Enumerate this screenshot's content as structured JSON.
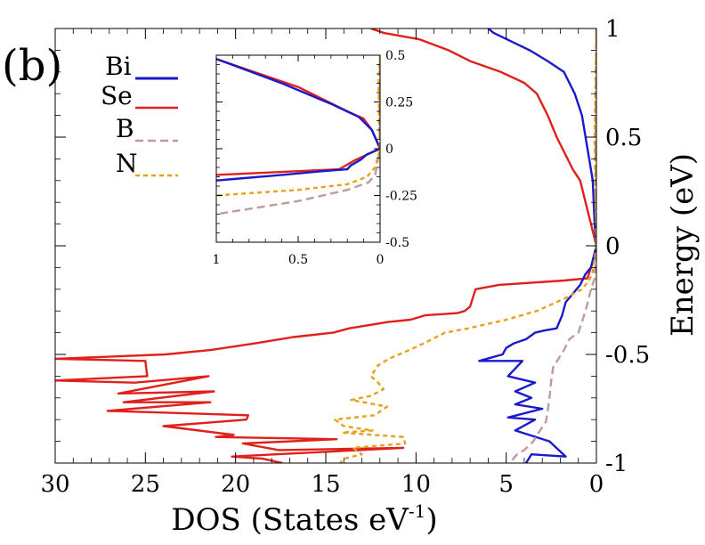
{
  "panel_label": "(b)",
  "chart_data": [
    {
      "type": "line",
      "name": "main",
      "xlabel": "DOS (States eV",
      "xlabel_sup": "-1",
      "xlabel_close": ")",
      "ylabel": "Energy (eV)",
      "xlim": [
        30,
        0
      ],
      "ylim": [
        -1,
        1
      ],
      "xticks": [
        30,
        25,
        20,
        15,
        10,
        5,
        0
      ],
      "xtick_labels": [
        "30",
        "25",
        "20",
        "15",
        "10",
        "5",
        "0"
      ],
      "yticks": [
        -1,
        -0.5,
        0,
        0.5,
        1
      ],
      "ytick_labels": [
        "-1",
        "-0.5",
        "0",
        "0.5",
        "1"
      ],
      "series": [
        {
          "name": "Se",
          "color": "#e0201b",
          "dash": "",
          "points": [
            [
              12.5,
              1.0
            ],
            [
              11.8,
              0.98
            ],
            [
              9.8,
              0.95
            ],
            [
              8.2,
              0.9
            ],
            [
              7,
              0.85
            ],
            [
              5.3,
              0.8
            ],
            [
              4,
              0.75
            ],
            [
              3.3,
              0.7
            ],
            [
              2.7,
              0.6
            ],
            [
              2.2,
              0.5
            ],
            [
              1.6,
              0.4
            ],
            [
              1.3,
              0.35
            ],
            [
              0.9,
              0.3
            ],
            [
              0.6,
              0.2
            ],
            [
              0.3,
              0.1
            ],
            [
              0,
              0
            ],
            [
              0.3,
              -0.1
            ],
            [
              0.5,
              -0.15
            ],
            [
              1.8,
              -0.16
            ],
            [
              5.4,
              -0.18
            ],
            [
              6.7,
              -0.2
            ],
            [
              7,
              -0.28
            ],
            [
              7.3,
              -0.3
            ],
            [
              7.7,
              -0.31
            ],
            [
              9.5,
              -0.32
            ],
            [
              10.3,
              -0.34
            ],
            [
              11.5,
              -0.35
            ],
            [
              13.7,
              -0.38
            ],
            [
              14.6,
              -0.4
            ],
            [
              16.8,
              -0.42
            ],
            [
              19,
              -0.45
            ],
            [
              21.4,
              -0.48
            ],
            [
              23.9,
              -0.5
            ],
            [
              30,
              -0.52
            ],
            [
              25,
              -0.53
            ],
            [
              24.9,
              -0.6
            ],
            [
              30,
              -0.62
            ],
            [
              25.6,
              -0.63
            ],
            [
              21.5,
              -0.6
            ],
            [
              26.5,
              -0.68
            ],
            [
              21.2,
              -0.67
            ],
            [
              26.2,
              -0.72
            ],
            [
              21.4,
              -0.72
            ],
            [
              27.1,
              -0.76
            ],
            [
              19.3,
              -0.78
            ],
            [
              19.4,
              -0.8
            ],
            [
              24,
              -0.83
            ],
            [
              20.1,
              -0.87
            ],
            [
              21.1,
              -0.88
            ],
            [
              14.4,
              -0.89
            ],
            [
              19.6,
              -0.91
            ],
            [
              17.6,
              -0.94
            ],
            [
              10.7,
              -0.93
            ],
            [
              20.2,
              -0.97
            ],
            [
              18.5,
              -0.98
            ],
            [
              17.4,
              -1.0
            ]
          ]
        },
        {
          "name": "Bi",
          "color": "#1a1acc",
          "dash": "",
          "points": [
            [
              6,
              1.0
            ],
            [
              5.7,
              0.98
            ],
            [
              3.7,
              0.9
            ],
            [
              2.7,
              0.85
            ],
            [
              1.8,
              0.8
            ],
            [
              1.2,
              0.7
            ],
            [
              0.8,
              0.6
            ],
            [
              0.6,
              0.5
            ],
            [
              0.4,
              0.4
            ],
            [
              0.3,
              0.35
            ],
            [
              0.2,
              0.3
            ],
            [
              0.1,
              0.1
            ],
            [
              0,
              0
            ],
            [
              0.3,
              -0.1
            ],
            [
              0.6,
              -0.13
            ],
            [
              0.9,
              -0.18
            ],
            [
              1.1,
              -0.2
            ],
            [
              1.4,
              -0.23
            ],
            [
              1.7,
              -0.26
            ],
            [
              1.9,
              -0.32
            ],
            [
              2.1,
              -0.36
            ],
            [
              2.2,
              -0.38
            ],
            [
              2.9,
              -0.39
            ],
            [
              3.4,
              -0.4
            ],
            [
              3.9,
              -0.43
            ],
            [
              4.6,
              -0.45
            ],
            [
              5.0,
              -0.47
            ],
            [
              5.2,
              -0.5
            ],
            [
              6.5,
              -0.53
            ],
            [
              4.1,
              -0.53
            ],
            [
              4.9,
              -0.6
            ],
            [
              3.4,
              -0.63
            ],
            [
              4.5,
              -0.67
            ],
            [
              3.6,
              -0.7
            ],
            [
              4.5,
              -0.73
            ],
            [
              3.0,
              -0.75
            ],
            [
              4.9,
              -0.79
            ],
            [
              3.4,
              -0.8
            ],
            [
              4.5,
              -0.85
            ],
            [
              2.6,
              -0.9
            ],
            [
              1.7,
              -0.97
            ],
            [
              3.6,
              -0.96
            ],
            [
              3.9,
              -1.0
            ]
          ]
        },
        {
          "name": "B",
          "color": "#bc9c9c",
          "dash": "9,5",
          "points": [
            [
              0,
              1.0
            ],
            [
              0.05,
              0.5
            ],
            [
              0.03,
              0.2
            ],
            [
              0,
              0
            ],
            [
              0.1,
              -0.15
            ],
            [
              0.3,
              -0.2
            ],
            [
              0.6,
              -0.3
            ],
            [
              0.8,
              -0.35
            ],
            [
              1.0,
              -0.4
            ],
            [
              1.5,
              -0.43
            ],
            [
              1.8,
              -0.48
            ],
            [
              2.1,
              -0.52
            ],
            [
              2.4,
              -0.56
            ],
            [
              2.5,
              -0.62
            ],
            [
              2.6,
              -0.7
            ],
            [
              2.7,
              -0.76
            ],
            [
              2.8,
              -0.81
            ],
            [
              3.2,
              -0.86
            ],
            [
              3.5,
              -0.9
            ],
            [
              4.0,
              -0.94
            ],
            [
              4.4,
              -0.96
            ],
            [
              4.8,
              -1.0
            ]
          ]
        },
        {
          "name": "N",
          "color": "#e6a219",
          "dash": "5,4",
          "points": [
            [
              0,
              1.0
            ],
            [
              0.1,
              0.5
            ],
            [
              0.05,
              0.2
            ],
            [
              0,
              0
            ],
            [
              0.2,
              -0.12
            ],
            [
              0.4,
              -0.16
            ],
            [
              0.8,
              -0.2
            ],
            [
              1.7,
              -0.24
            ],
            [
              3.3,
              -0.3
            ],
            [
              5,
              -0.34
            ],
            [
              7.1,
              -0.38
            ],
            [
              8.4,
              -0.4
            ],
            [
              9.1,
              -0.43
            ],
            [
              10.1,
              -0.47
            ],
            [
              11.5,
              -0.52
            ],
            [
              12.1,
              -0.55
            ],
            [
              12.5,
              -0.6
            ],
            [
              12.1,
              -0.63
            ],
            [
              11.8,
              -0.66
            ],
            [
              12.5,
              -0.69
            ],
            [
              13.6,
              -0.71
            ],
            [
              11.6,
              -0.74
            ],
            [
              12.3,
              -0.78
            ],
            [
              14.5,
              -0.8
            ],
            [
              14.0,
              -0.83
            ],
            [
              12.4,
              -0.85
            ],
            [
              14.1,
              -0.86
            ],
            [
              10.7,
              -0.88
            ],
            [
              10.6,
              -0.91
            ],
            [
              13.5,
              -0.93
            ],
            [
              13.0,
              -0.96
            ],
            [
              14.0,
              -0.98
            ],
            [
              14.2,
              -1.0
            ]
          ]
        }
      ],
      "legend": {
        "position": "top-left",
        "entries": [
          {
            "label": "Bi",
            "color": "#1a1acc",
            "dash": ""
          },
          {
            "label": "Se",
            "color": "#e0201b",
            "dash": ""
          },
          {
            "label": "B",
            "color": "#bc9c9c",
            "dash": "9,5"
          },
          {
            "label": "N",
            "color": "#e6a219",
            "dash": "5,4"
          }
        ]
      }
    },
    {
      "type": "line",
      "name": "inset",
      "xlim": [
        1,
        0
      ],
      "ylim": [
        -0.5,
        0.5
      ],
      "xticks": [
        1,
        0.5,
        0
      ],
      "xtick_labels": [
        "1",
        "0.5",
        "0"
      ],
      "yticks": [
        -0.5,
        -0.25,
        0,
        0.25,
        0.5
      ],
      "ytick_labels": [
        "-0.5",
        "-0.25",
        "0",
        "0.25",
        "0.5"
      ],
      "series": [
        {
          "name": "Se",
          "color": "#e0201b",
          "dash": "",
          "points": [
            [
              1,
              0.48
            ],
            [
              0.5,
              0.33
            ],
            [
              0.2,
              0.2
            ],
            [
              0.1,
              0.16
            ],
            [
              0.05,
              0.1
            ],
            [
              0,
              0
            ],
            [
              0.05,
              -0.02
            ],
            [
              0.15,
              -0.06
            ],
            [
              0.25,
              -0.11
            ],
            [
              0.5,
              -0.12
            ],
            [
              1,
              -0.14
            ]
          ]
        },
        {
          "name": "Bi",
          "color": "#1a1acc",
          "dash": "",
          "points": [
            [
              1,
              0.48
            ],
            [
              0.6,
              0.35
            ],
            [
              0.3,
              0.24
            ],
            [
              0.13,
              0.17
            ],
            [
              0.05,
              0.1
            ],
            [
              0,
              0
            ],
            [
              0.08,
              -0.03
            ],
            [
              0.12,
              -0.06
            ],
            [
              0.18,
              -0.09
            ],
            [
              0.2,
              -0.11
            ],
            [
              0.35,
              -0.12
            ],
            [
              0.6,
              -0.14
            ],
            [
              1,
              -0.17
            ]
          ]
        },
        {
          "name": "B",
          "color": "#bc9c9c",
          "dash": "9,5",
          "points": [
            [
              0,
              0.5
            ],
            [
              0.005,
              0.25
            ],
            [
              0.003,
              0.1
            ],
            [
              0,
              0
            ],
            [
              0.03,
              -0.14
            ],
            [
              0.07,
              -0.18
            ],
            [
              0.2,
              -0.22
            ],
            [
              0.5,
              -0.28
            ],
            [
              1,
              -0.35
            ]
          ]
        },
        {
          "name": "N",
          "color": "#e6a219",
          "dash": "5,4",
          "points": [
            [
              0,
              0.5
            ],
            [
              0.01,
              0.35
            ],
            [
              0.005,
              0.1
            ],
            [
              0,
              0
            ],
            [
              0.03,
              -0.1
            ],
            [
              0.08,
              -0.15
            ],
            [
              0.2,
              -0.19
            ],
            [
              0.5,
              -0.22
            ],
            [
              1,
              -0.25
            ]
          ]
        }
      ]
    }
  ]
}
